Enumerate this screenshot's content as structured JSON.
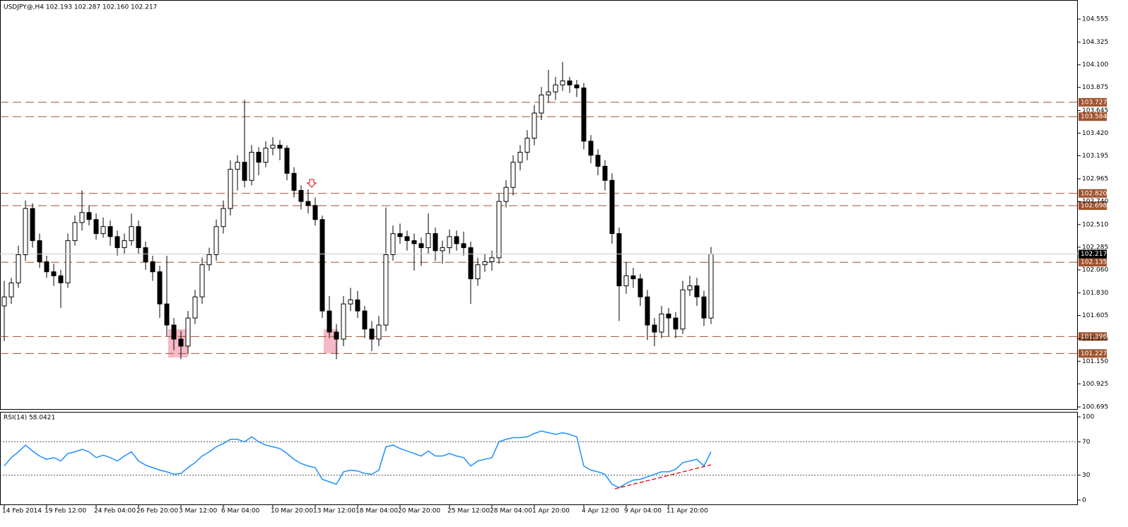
{
  "chart_data": [
    {
      "type": "candlestick",
      "title": "USDJPY@,H4  102.193 102.287 102.160 102.217",
      "categories": [
        "14 Feb 2014",
        null,
        null,
        null,
        null,
        null,
        "19 Feb 12:00",
        null,
        null,
        null,
        null,
        null,
        null,
        "24 Feb 04:00",
        null,
        null,
        null,
        null,
        null,
        "26 Feb 20:00",
        null,
        null,
        null,
        null,
        null,
        "3 Mar 12:00",
        null,
        null,
        null,
        null,
        null,
        "6 Mar 04:00",
        null,
        null,
        null,
        null,
        null,
        null,
        "10 Mar 20:00",
        null,
        null,
        null,
        null,
        null,
        "13 Mar 12:00",
        null,
        null,
        null,
        null,
        null,
        "18 Mar 04:00",
        null,
        null,
        null,
        null,
        null,
        "20 Mar 20:00",
        null,
        null,
        null,
        null,
        null,
        null,
        "25 Mar 12:00",
        null,
        null,
        null,
        null,
        null,
        "28 Mar 04:00",
        null,
        null,
        null,
        null,
        null,
        "1 Apr 20:00",
        null,
        null,
        null,
        null,
        null,
        null,
        "4 Apr 12:00",
        null,
        null,
        null,
        null,
        null,
        "9 Apr 04:00",
        null,
        null,
        null,
        null,
        null,
        "11 Apr 20:00",
        null,
        null,
        null,
        null,
        null,
        null
      ],
      "candles": [
        [
          101.7,
          101.95,
          101.35,
          101.79
        ],
        [
          101.79,
          101.98,
          101.72,
          101.93
        ],
        [
          101.93,
          102.3,
          101.88,
          102.21
        ],
        [
          102.21,
          102.75,
          102.15,
          102.67
        ],
        [
          102.67,
          102.72,
          102.28,
          102.35
        ],
        [
          102.35,
          102.42,
          102.08,
          102.14
        ],
        [
          102.14,
          102.2,
          101.98,
          102.04
        ],
        [
          102.04,
          102.12,
          101.9,
          102.0
        ],
        [
          102.0,
          102.06,
          101.68,
          101.93
        ],
        [
          101.93,
          102.42,
          101.88,
          102.35
        ],
        [
          102.35,
          102.6,
          102.3,
          102.53
        ],
        [
          102.53,
          102.85,
          102.45,
          102.63
        ],
        [
          102.63,
          102.7,
          102.5,
          102.56
        ],
        [
          102.56,
          102.62,
          102.36,
          102.42
        ],
        [
          102.42,
          102.58,
          102.38,
          102.49
        ],
        [
          102.49,
          102.55,
          102.3,
          102.39
        ],
        [
          102.39,
          102.45,
          102.2,
          102.28
        ],
        [
          102.28,
          102.42,
          102.22,
          102.35
        ],
        [
          102.35,
          102.62,
          102.3,
          102.49
        ],
        [
          102.49,
          102.55,
          102.22,
          102.28
        ],
        [
          102.28,
          102.34,
          102.06,
          102.14
        ],
        [
          102.14,
          102.2,
          101.95,
          102.04
        ],
        [
          102.04,
          102.1,
          101.58,
          101.72
        ],
        [
          101.72,
          102.2,
          101.4,
          101.51
        ],
        [
          101.51,
          101.58,
          101.26,
          101.37
        ],
        [
          101.37,
          101.45,
          101.17,
          101.3
        ],
        [
          101.3,
          101.65,
          101.22,
          101.58
        ],
        [
          101.58,
          101.86,
          101.52,
          101.79
        ],
        [
          101.79,
          102.18,
          101.72,
          102.11
        ],
        [
          102.11,
          102.28,
          102.05,
          102.21
        ],
        [
          102.21,
          102.56,
          102.15,
          102.49
        ],
        [
          102.49,
          102.75,
          102.42,
          102.67
        ],
        [
          102.67,
          103.15,
          102.6,
          103.06
        ],
        [
          103.06,
          103.2,
          102.85,
          103.13
        ],
        [
          103.13,
          103.75,
          102.88,
          102.95
        ],
        [
          102.95,
          103.3,
          102.9,
          103.23
        ],
        [
          103.23,
          103.28,
          103.0,
          103.13
        ],
        [
          103.13,
          103.34,
          103.08,
          103.27
        ],
        [
          103.27,
          103.38,
          103.2,
          103.3
        ],
        [
          103.3,
          103.35,
          103.15,
          103.27
        ],
        [
          103.27,
          103.3,
          102.95,
          103.02
        ],
        [
          103.02,
          103.08,
          102.78,
          102.85
        ],
        [
          102.85,
          102.9,
          102.66,
          102.74
        ],
        [
          102.74,
          102.86,
          102.62,
          102.7
        ],
        [
          102.7,
          102.78,
          102.5,
          102.56
        ],
        [
          102.56,
          102.6,
          101.58,
          101.65
        ],
        [
          101.65,
          101.8,
          101.38,
          101.44
        ],
        [
          101.44,
          101.52,
          101.17,
          101.37
        ],
        [
          101.37,
          101.8,
          101.3,
          101.72
        ],
        [
          101.72,
          101.88,
          101.65,
          101.76
        ],
        [
          101.76,
          101.85,
          101.58,
          101.65
        ],
        [
          101.65,
          101.7,
          101.38,
          101.47
        ],
        [
          101.47,
          101.55,
          101.25,
          101.37
        ],
        [
          101.37,
          101.6,
          101.3,
          101.51
        ],
        [
          101.51,
          102.68,
          101.45,
          102.21
        ],
        [
          102.21,
          102.5,
          102.15,
          102.42
        ],
        [
          102.42,
          102.52,
          102.32,
          102.39
        ],
        [
          102.39,
          102.45,
          102.25,
          102.35
        ],
        [
          102.35,
          102.42,
          102.05,
          102.32
        ],
        [
          102.32,
          102.38,
          102.1,
          102.28
        ],
        [
          102.28,
          102.62,
          102.22,
          102.42
        ],
        [
          102.42,
          102.48,
          102.15,
          102.25
        ],
        [
          102.25,
          102.35,
          102.12,
          102.28
        ],
        [
          102.28,
          102.46,
          102.22,
          102.39
        ],
        [
          102.39,
          102.45,
          102.25,
          102.32
        ],
        [
          102.32,
          102.44,
          102.2,
          102.28
        ],
        [
          102.28,
          102.34,
          101.72,
          101.97
        ],
        [
          101.97,
          102.18,
          101.9,
          102.11
        ],
        [
          102.11,
          102.22,
          102.04,
          102.14
        ],
        [
          102.14,
          102.25,
          102.05,
          102.18
        ],
        [
          102.18,
          102.82,
          102.12,
          102.74
        ],
        [
          102.74,
          102.95,
          102.68,
          102.88
        ],
        [
          102.88,
          103.2,
          102.8,
          103.13
        ],
        [
          103.13,
          103.3,
          103.05,
          103.23
        ],
        [
          103.23,
          103.45,
          103.15,
          103.37
        ],
        [
          103.37,
          103.7,
          103.3,
          103.62
        ],
        [
          103.62,
          103.88,
          103.55,
          103.8
        ],
        [
          103.8,
          104.05,
          103.72,
          103.83
        ],
        [
          103.83,
          103.98,
          103.75,
          103.9
        ],
        [
          103.9,
          104.13,
          103.84,
          103.94
        ],
        [
          103.94,
          103.98,
          103.82,
          103.9
        ],
        [
          103.9,
          103.95,
          103.78,
          103.87
        ],
        [
          103.87,
          103.92,
          103.26,
          103.34
        ],
        [
          103.34,
          103.4,
          103.12,
          103.2
        ],
        [
          103.2,
          103.26,
          103.0,
          103.09
        ],
        [
          103.09,
          103.15,
          102.85,
          102.95
        ],
        [
          102.95,
          103.02,
          102.32,
          102.42
        ],
        [
          102.42,
          102.48,
          101.55,
          101.9
        ],
        [
          101.9,
          102.14,
          101.82,
          102.0
        ],
        [
          102.0,
          102.08,
          101.88,
          101.97
        ],
        [
          101.97,
          102.02,
          101.7,
          101.79
        ],
        [
          101.79,
          101.86,
          101.36,
          101.51
        ],
        [
          101.51,
          101.58,
          101.3,
          101.44
        ],
        [
          101.44,
          101.7,
          101.38,
          101.62
        ],
        [
          101.62,
          101.68,
          101.4,
          101.58
        ],
        [
          101.58,
          101.64,
          101.38,
          101.47
        ],
        [
          101.47,
          101.95,
          101.42,
          101.86
        ],
        [
          101.86,
          102.0,
          101.8,
          101.9
        ],
        [
          101.9,
          101.98,
          101.7,
          101.79
        ],
        [
          101.79,
          101.85,
          101.5,
          101.58
        ],
        [
          101.58,
          102.287,
          101.52,
          102.217
        ]
      ],
      "color": "#000000",
      "ylim": [
        100.667,
        104.745
      ],
      "yticks": [
        104.555,
        104.325,
        {
          "value": 104.1,
          "label": "104.100"
        },
        103.875,
        103.645,
        {
          "value": 103.42,
          "label": "103.420"
        },
        103.195,
        102.965,
        {
          "value": 102.74,
          "label": "102.740"
        },
        {
          "value": 102.51,
          "label": "102.510"
        },
        102.285,
        {
          "value": 102.06,
          "label": "102.060"
        },
        {
          "value": 101.83,
          "label": "101.830"
        },
        101.605,
        101.375,
        {
          "value": 101.15,
          "label": "101.150"
        },
        100.925,
        100.695
      ],
      "levels": [
        103.727,
        103.584,
        {
          "value": 102.82,
          "label": "102.820"
        },
        102.698,
        102.135,
        101.396,
        101.227
      ],
      "level_color": "#a0522d"
    },
    {
      "type": "line",
      "title": "RSI(14) 58.0421",
      "values": [
        41,
        51,
        58,
        66,
        59,
        53,
        49,
        51,
        47,
        56,
        58,
        61,
        58,
        51,
        54,
        51,
        47,
        53,
        58,
        47,
        42,
        39,
        36,
        34,
        31,
        32,
        39,
        45,
        53,
        58,
        64,
        68,
        73,
        73,
        70,
        76,
        70,
        66,
        64,
        62,
        56,
        49,
        44,
        41,
        39,
        25,
        22,
        19,
        34,
        36,
        35,
        32,
        31,
        36,
        64,
        66,
        62,
        59,
        56,
        53,
        59,
        53,
        53,
        56,
        53,
        51,
        41,
        47,
        49,
        51,
        70,
        73,
        75,
        75,
        76,
        80,
        83,
        81,
        79,
        81,
        79,
        76,
        41,
        36,
        34,
        31,
        19,
        15,
        20,
        24,
        25,
        28,
        31,
        34,
        34,
        37,
        45,
        47,
        49,
        41,
        58.0421
      ],
      "color": "#1e90ff",
      "ylim": [
        -6,
        106
      ],
      "yticks": [
        100,
        70,
        30,
        0
      ],
      "levels": [
        70,
        30
      ]
    }
  ]
}
